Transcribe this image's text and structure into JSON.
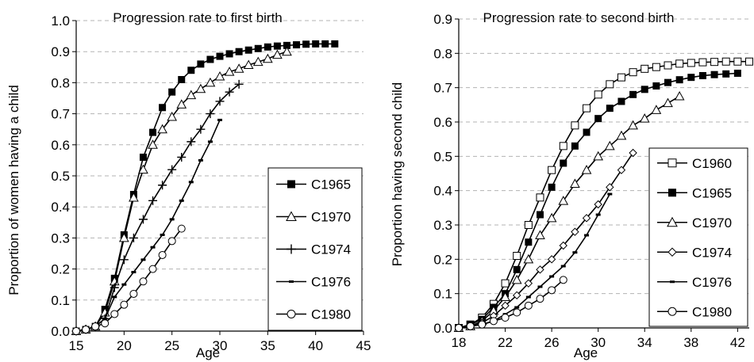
{
  "chart_data": [
    {
      "type": "line",
      "title": "Progression rate to first birth",
      "xlabel": "Age",
      "ylabel": "Proportion of women having a child",
      "xlim": [
        15,
        45
      ],
      "ylim": [
        0,
        1.0
      ],
      "x_ticks": [
        "15",
        "20",
        "25",
        "30",
        "35",
        "40",
        "45"
      ],
      "y_ticks": [
        "0.0",
        "0.1",
        "0.2",
        "0.3",
        "0.4",
        "0.5",
        "0.6",
        "0.7",
        "0.8",
        "0.9",
        "1.0"
      ],
      "grid": "horizontal dashed",
      "legend_position": "bottom-right",
      "series": [
        {
          "name": "C1965",
          "marker": "filled-square",
          "x": [
            15,
            16,
            17,
            18,
            19,
            20,
            21,
            22,
            23,
            24,
            25,
            26,
            27,
            28,
            29,
            30,
            31,
            32,
            33,
            34,
            35,
            36,
            37,
            38,
            39,
            40,
            41,
            42
          ],
          "y": [
            0.0,
            0.005,
            0.015,
            0.07,
            0.17,
            0.31,
            0.44,
            0.56,
            0.64,
            0.72,
            0.77,
            0.81,
            0.84,
            0.86,
            0.875,
            0.885,
            0.893,
            0.9,
            0.905,
            0.91,
            0.915,
            0.918,
            0.92,
            0.922,
            0.924,
            0.925,
            0.925,
            0.925
          ]
        },
        {
          "name": "C1970",
          "marker": "open-triangle",
          "x": [
            15,
            16,
            17,
            18,
            19,
            20,
            21,
            22,
            23,
            24,
            25,
            26,
            27,
            28,
            29,
            30,
            31,
            32,
            33,
            34,
            35,
            36,
            37
          ],
          "y": [
            0.0,
            0.005,
            0.015,
            0.06,
            0.16,
            0.3,
            0.43,
            0.52,
            0.6,
            0.65,
            0.69,
            0.73,
            0.76,
            0.78,
            0.8,
            0.82,
            0.835,
            0.845,
            0.857,
            0.867,
            0.877,
            0.89,
            0.9
          ]
        },
        {
          "name": "C1974",
          "marker": "plus",
          "x": [
            15,
            16,
            17,
            18,
            19,
            20,
            21,
            22,
            23,
            24,
            25,
            26,
            27,
            28,
            29,
            30,
            31,
            32
          ],
          "y": [
            0.0,
            0.005,
            0.015,
            0.04,
            0.14,
            0.23,
            0.3,
            0.36,
            0.42,
            0.47,
            0.52,
            0.56,
            0.61,
            0.65,
            0.7,
            0.74,
            0.77,
            0.795
          ]
        },
        {
          "name": "C1976",
          "marker": "dash",
          "x": [
            15,
            16,
            17,
            18,
            19,
            20,
            21,
            22,
            23,
            24,
            25,
            26,
            27,
            28,
            29,
            30
          ],
          "y": [
            0.0,
            0.005,
            0.015,
            0.04,
            0.11,
            0.15,
            0.19,
            0.23,
            0.27,
            0.31,
            0.36,
            0.42,
            0.48,
            0.55,
            0.61,
            0.68
          ]
        },
        {
          "name": "C1980",
          "marker": "open-circle",
          "x": [
            15,
            16,
            17,
            18,
            19,
            20,
            21,
            22,
            23,
            24,
            25,
            26
          ],
          "y": [
            0.0,
            0.005,
            0.015,
            0.025,
            0.055,
            0.085,
            0.12,
            0.16,
            0.2,
            0.245,
            0.29,
            0.33
          ]
        }
      ]
    },
    {
      "type": "line",
      "title": "Progression rate to second birth",
      "xlabel": "Age",
      "ylabel": "Proportion having second child",
      "xlim": [
        18,
        43
      ],
      "ylim": [
        0,
        0.9
      ],
      "x_ticks": [
        "18",
        "22",
        "26",
        "30",
        "34",
        "38",
        "42"
      ],
      "y_ticks": [
        "0.0",
        "0.1",
        "0.2",
        "0.3",
        "0.4",
        "0.5",
        "0.6",
        "0.7",
        "0.8",
        "0.9"
      ],
      "grid": "horizontal dashed",
      "legend_position": "bottom-right",
      "series": [
        {
          "name": "C1960",
          "marker": "open-square",
          "x": [
            18,
            19,
            20,
            21,
            22,
            23,
            24,
            25,
            26,
            27,
            28,
            29,
            30,
            31,
            32,
            33,
            34,
            35,
            36,
            37,
            38,
            39,
            40,
            41,
            42,
            43
          ],
          "y": [
            0.0,
            0.01,
            0.03,
            0.07,
            0.13,
            0.21,
            0.3,
            0.38,
            0.46,
            0.53,
            0.59,
            0.64,
            0.68,
            0.71,
            0.73,
            0.745,
            0.755,
            0.76,
            0.765,
            0.77,
            0.772,
            0.774,
            0.775,
            0.776,
            0.776,
            0.776
          ]
        },
        {
          "name": "C1965",
          "marker": "filled-square",
          "x": [
            18,
            19,
            20,
            21,
            22,
            23,
            24,
            25,
            26,
            27,
            28,
            29,
            30,
            31,
            32,
            33,
            34,
            35,
            36,
            37,
            38,
            39,
            40,
            41,
            42
          ],
          "y": [
            0.0,
            0.01,
            0.025,
            0.06,
            0.1,
            0.17,
            0.25,
            0.33,
            0.41,
            0.48,
            0.53,
            0.57,
            0.61,
            0.64,
            0.66,
            0.68,
            0.695,
            0.705,
            0.715,
            0.723,
            0.73,
            0.735,
            0.738,
            0.74,
            0.742
          ]
        },
        {
          "name": "C1970",
          "marker": "open-triangle",
          "x": [
            18,
            19,
            20,
            21,
            22,
            23,
            24,
            25,
            26,
            27,
            28,
            29,
            30,
            31,
            32,
            33,
            34,
            35,
            36,
            37
          ],
          "y": [
            0.0,
            0.005,
            0.02,
            0.05,
            0.09,
            0.14,
            0.2,
            0.27,
            0.32,
            0.37,
            0.42,
            0.46,
            0.5,
            0.53,
            0.56,
            0.59,
            0.61,
            0.635,
            0.655,
            0.675
          ]
        },
        {
          "name": "C1974",
          "marker": "open-diamond",
          "x": [
            18,
            19,
            20,
            21,
            22,
            23,
            24,
            25,
            26,
            27,
            28,
            29,
            30,
            31,
            32,
            33
          ],
          "y": [
            0.0,
            0.005,
            0.015,
            0.035,
            0.065,
            0.095,
            0.13,
            0.17,
            0.2,
            0.24,
            0.28,
            0.32,
            0.36,
            0.41,
            0.46,
            0.51
          ]
        },
        {
          "name": "C1976",
          "marker": "dash",
          "x": [
            18,
            19,
            20,
            21,
            22,
            23,
            24,
            25,
            26,
            27,
            28,
            29,
            30,
            31
          ],
          "y": [
            0.0,
            0.005,
            0.01,
            0.02,
            0.04,
            0.06,
            0.09,
            0.12,
            0.15,
            0.18,
            0.22,
            0.27,
            0.33,
            0.39
          ]
        },
        {
          "name": "C1980",
          "marker": "open-circle",
          "x": [
            18,
            19,
            20,
            21,
            22,
            23,
            24,
            25,
            26,
            27
          ],
          "y": [
            0.0,
            0.005,
            0.01,
            0.02,
            0.03,
            0.045,
            0.065,
            0.085,
            0.11,
            0.14
          ]
        }
      ]
    }
  ]
}
